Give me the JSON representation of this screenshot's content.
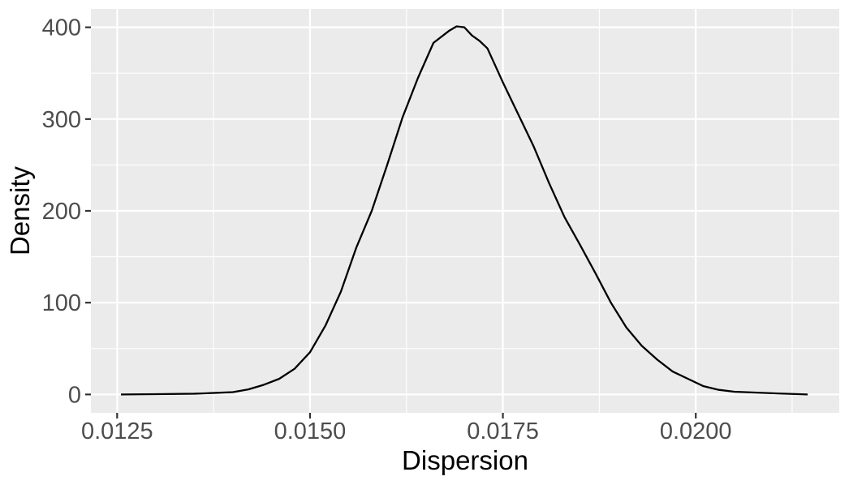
{
  "chart_data": {
    "type": "line",
    "title": "",
    "xlabel": "Dispersion",
    "ylabel": "Density",
    "xlim": [
      0.01216,
      0.02186
    ],
    "ylim": [
      -20,
      420
    ],
    "x_ticks": [
      0.0125,
      0.015,
      0.0175,
      0.02
    ],
    "x_tick_labels": [
      "0.0125",
      "0.0150",
      "0.0175",
      "0.0200"
    ],
    "y_ticks": [
      0,
      100,
      200,
      300,
      400
    ],
    "y_tick_labels": [
      "0",
      "100",
      "200",
      "300",
      "400"
    ],
    "grid": true,
    "legend": "none",
    "colors": {
      "panel": "#ebebeb",
      "grid": "#ffffff",
      "line": "#000000",
      "tick_text": "#4d4d4d"
    },
    "series": [
      {
        "points": [
          [
            0.01255,
            0.0
          ],
          [
            0.013,
            0.3
          ],
          [
            0.0135,
            0.8
          ],
          [
            0.0138,
            1.8
          ],
          [
            0.014,
            2.5
          ],
          [
            0.0142,
            5.5
          ],
          [
            0.0144,
            10.5
          ],
          [
            0.0146,
            17.0
          ],
          [
            0.0148,
            28.0
          ],
          [
            0.015,
            46.0
          ],
          [
            0.0152,
            75.0
          ],
          [
            0.0154,
            112.0
          ],
          [
            0.0156,
            160.0
          ],
          [
            0.0158,
            200.0
          ],
          [
            0.016,
            250.0
          ],
          [
            0.0162,
            302.0
          ],
          [
            0.0164,
            345.0
          ],
          [
            0.0166,
            383.0
          ],
          [
            0.0168,
            396.0
          ],
          [
            0.0169,
            401.0
          ],
          [
            0.017,
            400.0
          ],
          [
            0.0171,
            391.0
          ],
          [
            0.0172,
            385.0
          ],
          [
            0.0173,
            377.0
          ],
          [
            0.0175,
            340.0
          ],
          [
            0.0177,
            305.0
          ],
          [
            0.0179,
            270.0
          ],
          [
            0.0181,
            230.0
          ],
          [
            0.0183,
            193.0
          ],
          [
            0.0185,
            163.0
          ],
          [
            0.0187,
            132.0
          ],
          [
            0.0189,
            100.0
          ],
          [
            0.0191,
            73.0
          ],
          [
            0.0193,
            53.0
          ],
          [
            0.0195,
            38.0
          ],
          [
            0.0197,
            25.0
          ],
          [
            0.0199,
            17.0
          ],
          [
            0.0201,
            9.0
          ],
          [
            0.0203,
            5.0
          ],
          [
            0.0205,
            3.0
          ],
          [
            0.0208,
            2.0
          ],
          [
            0.0211,
            1.0
          ],
          [
            0.02145,
            0.0
          ]
        ]
      }
    ]
  }
}
